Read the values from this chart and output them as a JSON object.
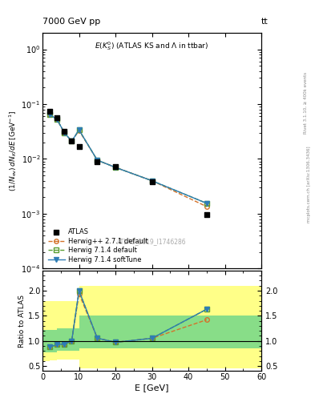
{
  "title_left": "7000 GeV pp",
  "title_right": "tt",
  "plot_title": "E(K$_S^0$) (ATLAS KS and \\Lambda in ttbar)",
  "watermark": "ATLAS_2019_I1746286",
  "right_label": "mcplots.cern.ch [arXiv:1306.3436]",
  "right_label2": "Rivet 3.1.10, ≥ 400k events",
  "xlabel": "E [GeV]",
  "ylabel_ratio": "Ratio to ATLAS",
  "xlim": [
    0,
    60
  ],
  "ylim_main": [
    0.0001,
    2.0
  ],
  "atlas_x": [
    2,
    4,
    6,
    8,
    10,
    15,
    20,
    30,
    45
  ],
  "atlas_y": [
    0.074,
    0.056,
    0.032,
    0.021,
    0.017,
    0.009,
    0.0072,
    0.0038,
    0.00095
  ],
  "herwig_pp_x": [
    2,
    4,
    6,
    8,
    10,
    15,
    20,
    30,
    45
  ],
  "herwig_pp_y": [
    0.065,
    0.052,
    0.03,
    0.021,
    0.033,
    0.0095,
    0.007,
    0.004,
    0.00135
  ],
  "herwig714_x": [
    2,
    4,
    6,
    8,
    10,
    15,
    20,
    30,
    45
  ],
  "herwig714_y": [
    0.065,
    0.052,
    0.03,
    0.021,
    0.034,
    0.0095,
    0.007,
    0.004,
    0.00155
  ],
  "herwig714soft_x": [
    2,
    4,
    6,
    8,
    10,
    15,
    20,
    30,
    45
  ],
  "herwig714soft_y": [
    0.065,
    0.052,
    0.03,
    0.021,
    0.034,
    0.0095,
    0.007,
    0.004,
    0.00155
  ],
  "color_hpp": "#d4722a",
  "color_h714": "#5a9e32",
  "color_h714s": "#2e7db5",
  "yband_edges": [
    0,
    2,
    4,
    10,
    20,
    60
  ],
  "yband_lo": [
    0.6,
    0.62,
    0.63,
    0.45,
    0.45,
    0.45
  ],
  "yband_hi": [
    1.8,
    1.8,
    1.8,
    2.1,
    2.1,
    2.1
  ],
  "gband_edges": [
    0,
    2,
    4,
    10,
    20,
    60
  ],
  "gband_lo": [
    0.78,
    0.78,
    0.8,
    0.85,
    0.85,
    0.85
  ],
  "gband_hi": [
    1.22,
    1.22,
    1.25,
    1.5,
    1.5,
    1.5
  ]
}
